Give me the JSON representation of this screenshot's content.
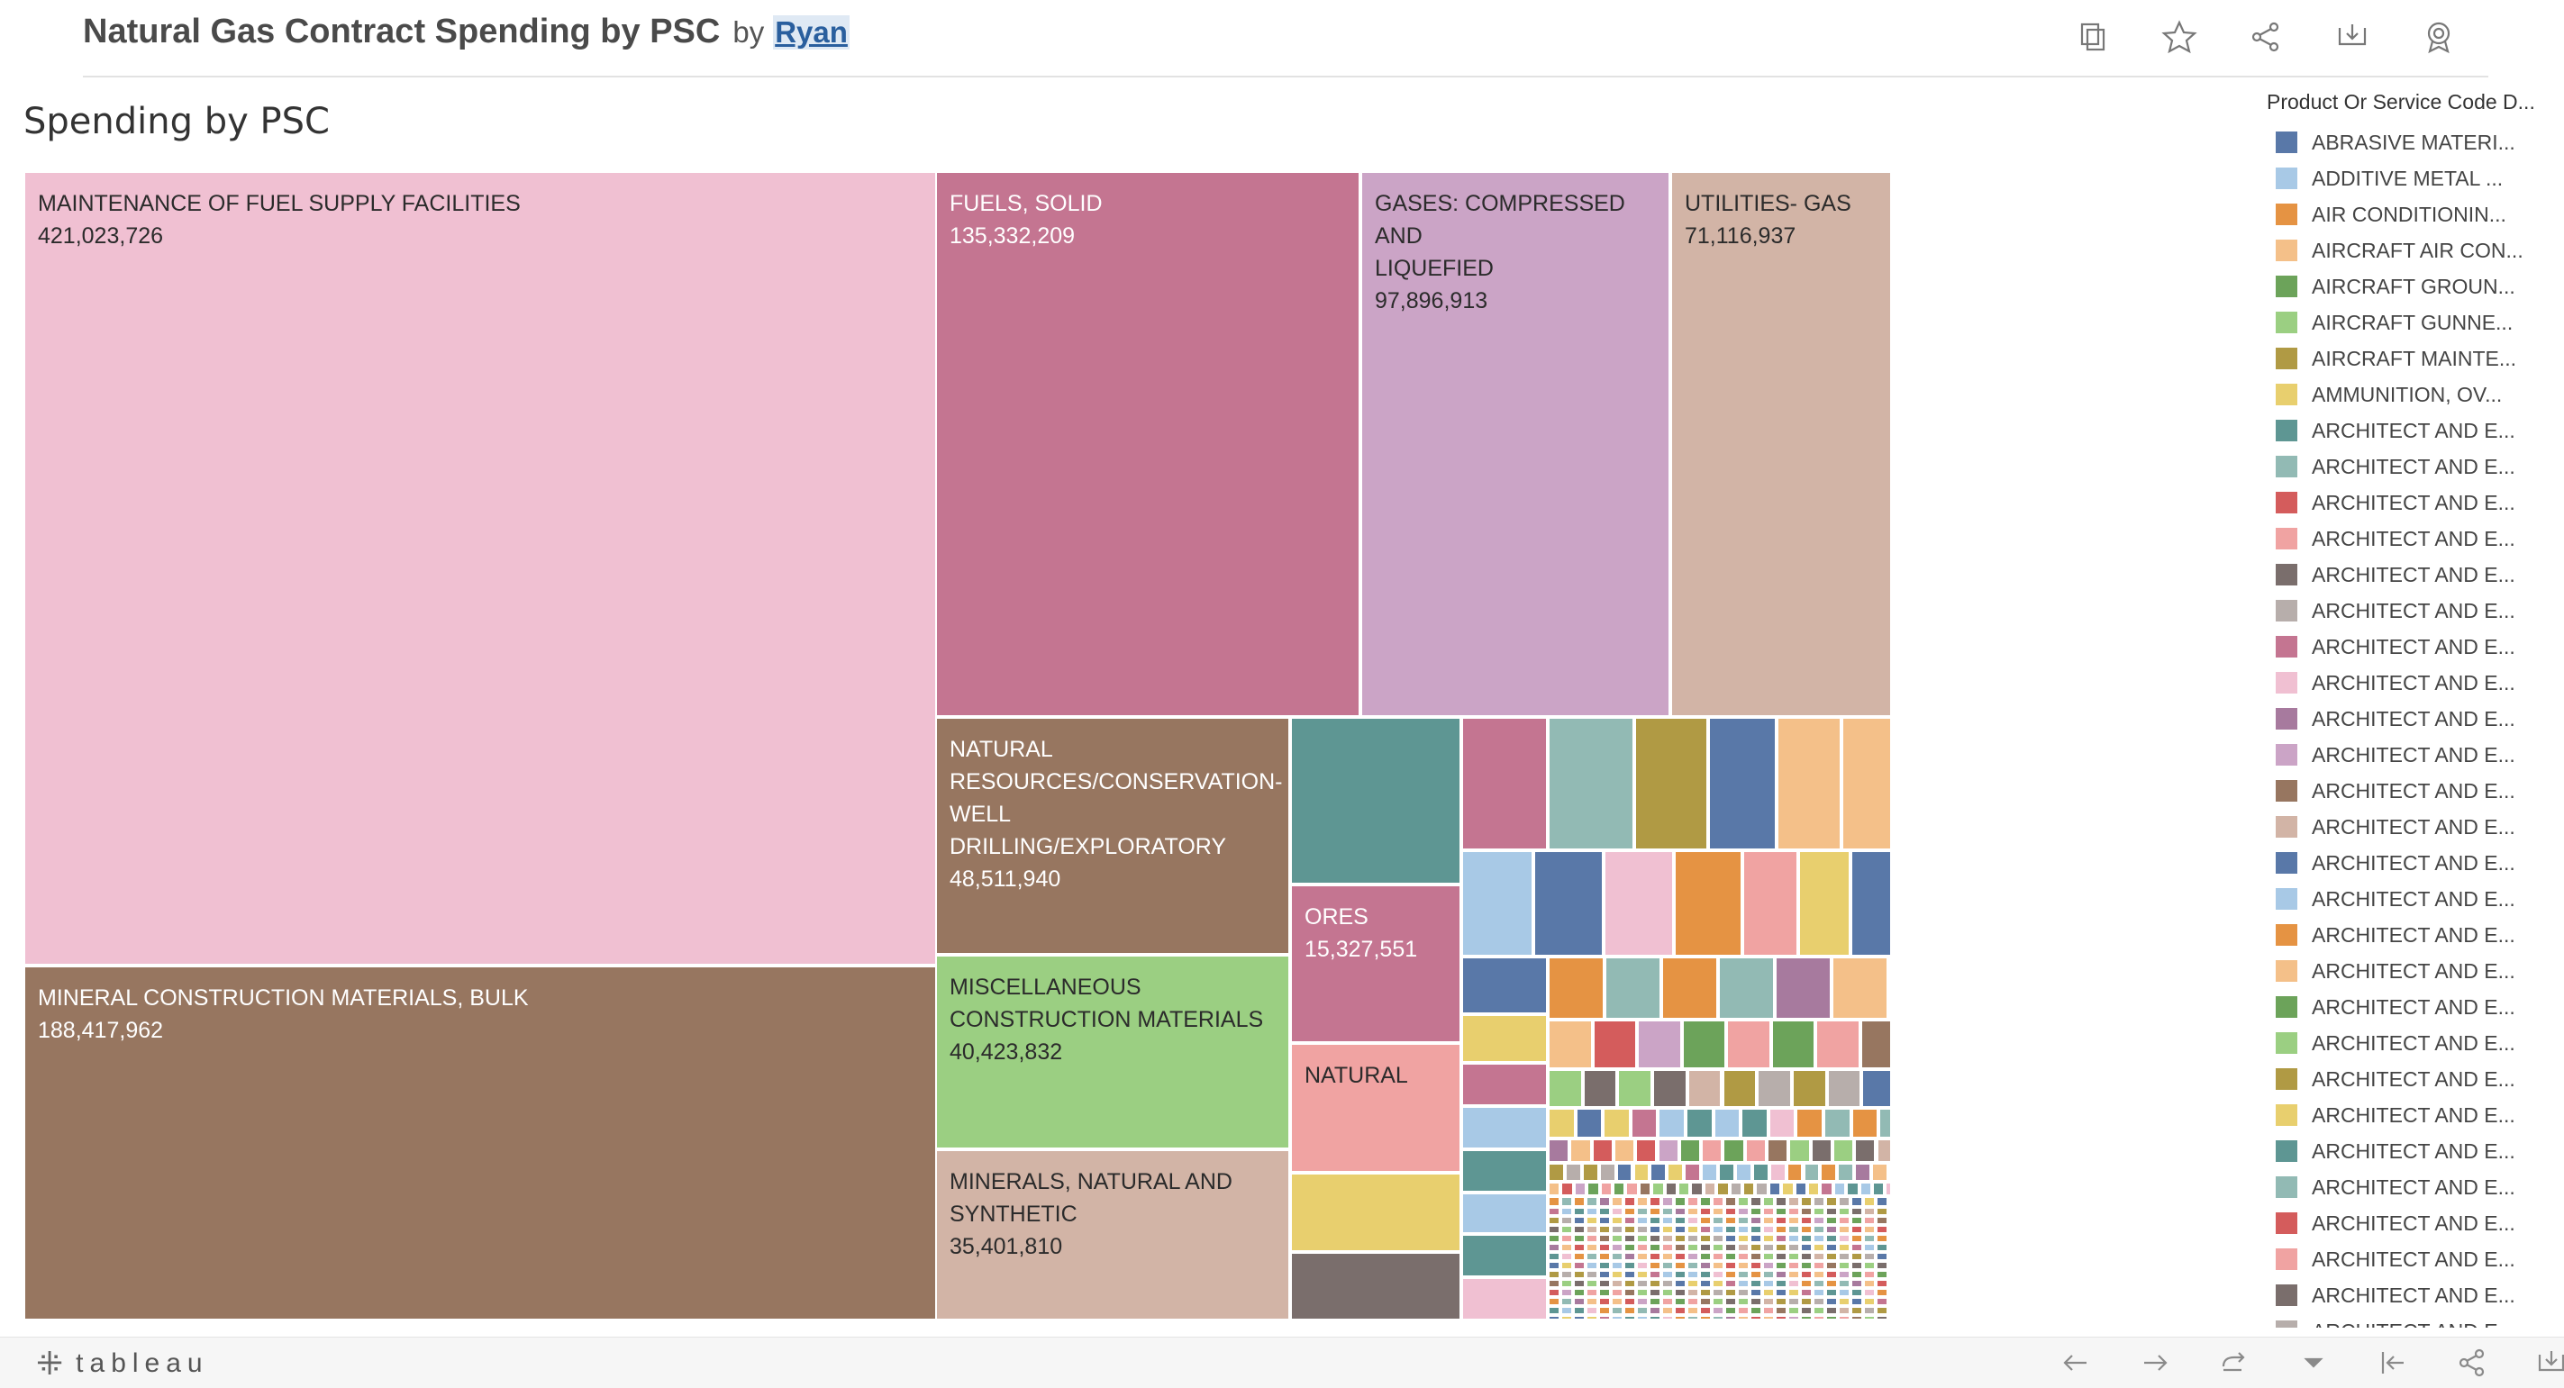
{
  "header": {
    "title": "Natural Gas Contract Spending by PSC",
    "by": "by",
    "author": "Ryan",
    "toolbar": [
      {
        "name": "duplicate-icon"
      },
      {
        "name": "favorite-star-icon"
      },
      {
        "name": "share-icon"
      },
      {
        "name": "download-icon"
      },
      {
        "name": "metrics-badge-icon"
      }
    ]
  },
  "sheet": {
    "title": "Spending by PSC"
  },
  "treemap": {
    "labeled": [
      {
        "label": "MAINTENANCE OF FUEL SUPPLY FACILITIES",
        "value": "421,023,726",
        "color": "#f0c0d2"
      },
      {
        "label": "FUELS, SOLID",
        "value": "135,332,209",
        "color": "#c47591"
      },
      {
        "label": "GASES: COMPRESSED AND\nLIQUEFIED",
        "value": "97,896,913",
        "color": "#cba4c6"
      },
      {
        "label": "UTILITIES- GAS",
        "value": "71,116,937",
        "color": "#d2b4a6"
      },
      {
        "label": "MINERAL CONSTRUCTION MATERIALS, BULK",
        "value": "188,417,962",
        "color": "#977660"
      },
      {
        "label": "NATURAL\nRESOURCES/CONSERVATION-\nWELL DRILLING/EXPLORATORY",
        "value": "48,511,940",
        "color": "#977660"
      },
      {
        "label": "MISCELLANEOUS\nCONSTRUCTION MATERIALS",
        "value": "40,423,832",
        "color": "#9bcf82"
      },
      {
        "label": "MINERALS, NATURAL AND\nSYNTHETIC",
        "value": "35,401,810",
        "color": "#d2b4a6"
      },
      {
        "label": "ORES",
        "value": "15,327,551",
        "color": "#c47591"
      },
      {
        "label": "NATURAL",
        "value": "",
        "color": "#f0a3a2"
      }
    ]
  },
  "legend": {
    "title": "Product Or Service Code D...",
    "items": [
      {
        "label": "ABRASIVE MATERI...",
        "color": "#5978a8"
      },
      {
        "label": "ADDITIVE METAL ...",
        "color": "#a8c9e6"
      },
      {
        "label": "AIR CONDITIONIN...",
        "color": "#e59343"
      },
      {
        "label": "AIRCRAFT AIR CON...",
        "color": "#f4c089"
      },
      {
        "label": "AIRCRAFT GROUN...",
        "color": "#6ca35a"
      },
      {
        "label": "AIRCRAFT GUNNE...",
        "color": "#9bcf82"
      },
      {
        "label": "AIRCRAFT MAINTE...",
        "color": "#b09a44"
      },
      {
        "label": "AMMUNITION, OV...",
        "color": "#e8cf6e"
      },
      {
        "label": "ARCHITECT AND E...",
        "color": "#5e9693"
      },
      {
        "label": "ARCHITECT AND E...",
        "color": "#92bab4"
      },
      {
        "label": "ARCHITECT AND E...",
        "color": "#d45c5c"
      },
      {
        "label": "ARCHITECT AND E...",
        "color": "#f0a3a2"
      },
      {
        "label": "ARCHITECT AND E...",
        "color": "#7a6e6c"
      },
      {
        "label": "ARCHITECT AND E...",
        "color": "#b7aeab"
      },
      {
        "label": "ARCHITECT AND E...",
        "color": "#c47591"
      },
      {
        "label": "ARCHITECT AND E...",
        "color": "#f0c0d2"
      },
      {
        "label": "ARCHITECT AND E...",
        "color": "#a77a9e"
      },
      {
        "label": "ARCHITECT AND E...",
        "color": "#cba4c6"
      },
      {
        "label": "ARCHITECT AND E...",
        "color": "#977660"
      },
      {
        "label": "ARCHITECT AND E...",
        "color": "#d2b4a6"
      },
      {
        "label": "ARCHITECT AND E...",
        "color": "#5978a8"
      },
      {
        "label": "ARCHITECT AND E...",
        "color": "#a8c9e6"
      },
      {
        "label": "ARCHITECT AND E...",
        "color": "#e59343"
      },
      {
        "label": "ARCHITECT AND E...",
        "color": "#f4c089"
      },
      {
        "label": "ARCHITECT AND E...",
        "color": "#6ca35a"
      },
      {
        "label": "ARCHITECT AND E...",
        "color": "#9bcf82"
      },
      {
        "label": "ARCHITECT AND E...",
        "color": "#b09a44"
      },
      {
        "label": "ARCHITECT AND E...",
        "color": "#e8cf6e"
      },
      {
        "label": "ARCHITECT AND E...",
        "color": "#5e9693"
      },
      {
        "label": "ARCHITECT AND E...",
        "color": "#92bab4"
      },
      {
        "label": "ARCHITECT AND E...",
        "color": "#d45c5c"
      },
      {
        "label": "ARCHITECT AND E...",
        "color": "#f0a3a2"
      },
      {
        "label": "ARCHITECT AND E...",
        "color": "#7a6e6c"
      },
      {
        "label": "ARCHITECT AND E...",
        "color": "#b7aeab"
      }
    ]
  },
  "footer": {
    "brand": "tableau",
    "controls": [
      {
        "name": "undo-icon"
      },
      {
        "name": "redo-icon"
      },
      {
        "name": "revert-icon"
      },
      {
        "name": "revert-dropdown-icon"
      },
      {
        "name": "reset-icon"
      },
      {
        "name": "share-footer-icon"
      },
      {
        "name": "download-footer-icon"
      },
      {
        "name": "fullscreen-icon"
      }
    ]
  }
}
